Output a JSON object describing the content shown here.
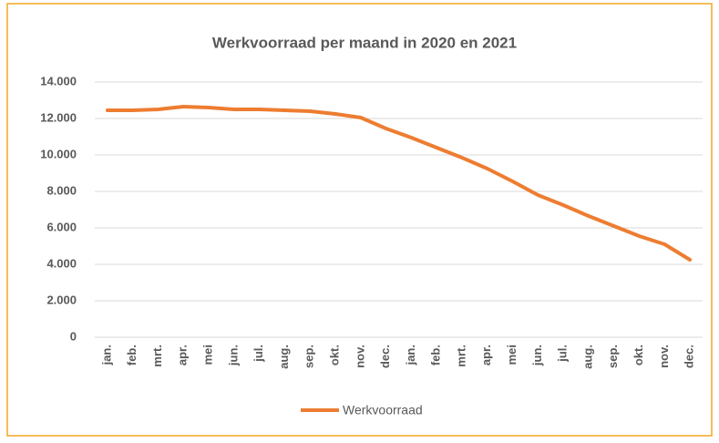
{
  "chart_data": {
    "type": "line",
    "title": "Werkvoorraad per maand in 2020 en 2021",
    "categories": [
      "jan.",
      "feb.",
      "mrt.",
      "apr.",
      "mei",
      "jun.",
      "jul.",
      "aug.",
      "sep.",
      "okt.",
      "nov.",
      "dec.",
      "jan.",
      "feb.",
      "mrt.",
      "apr.",
      "mei",
      "jun.",
      "jul.",
      "aug.",
      "sep.",
      "okt.",
      "nov.",
      "dec."
    ],
    "series": [
      {
        "name": "Werkvoorraad",
        "color": "#ed7d31",
        "values": [
          12450,
          12450,
          12500,
          12650,
          12600,
          12500,
          12500,
          12450,
          12400,
          12250,
          12050,
          11450,
          10950,
          10400,
          9850,
          9250,
          8550,
          7800,
          7250,
          6650,
          6100,
          5550,
          5100,
          4250
        ]
      }
    ],
    "ylim": [
      0,
      14000
    ],
    "yticks": [
      0,
      {
        "value": 2000,
        "label": "2.000"
      },
      {
        "value": 4000,
        "label": "4.000"
      },
      {
        "value": 6000,
        "label": "6.000"
      },
      {
        "value": 8000,
        "label": "8.000"
      },
      {
        "value": 10000,
        "label": "10.000"
      },
      {
        "value": 12000,
        "label": "12.000"
      },
      {
        "value": 14000,
        "label": "14.000"
      }
    ],
    "grid": true,
    "legend": "bottom"
  }
}
